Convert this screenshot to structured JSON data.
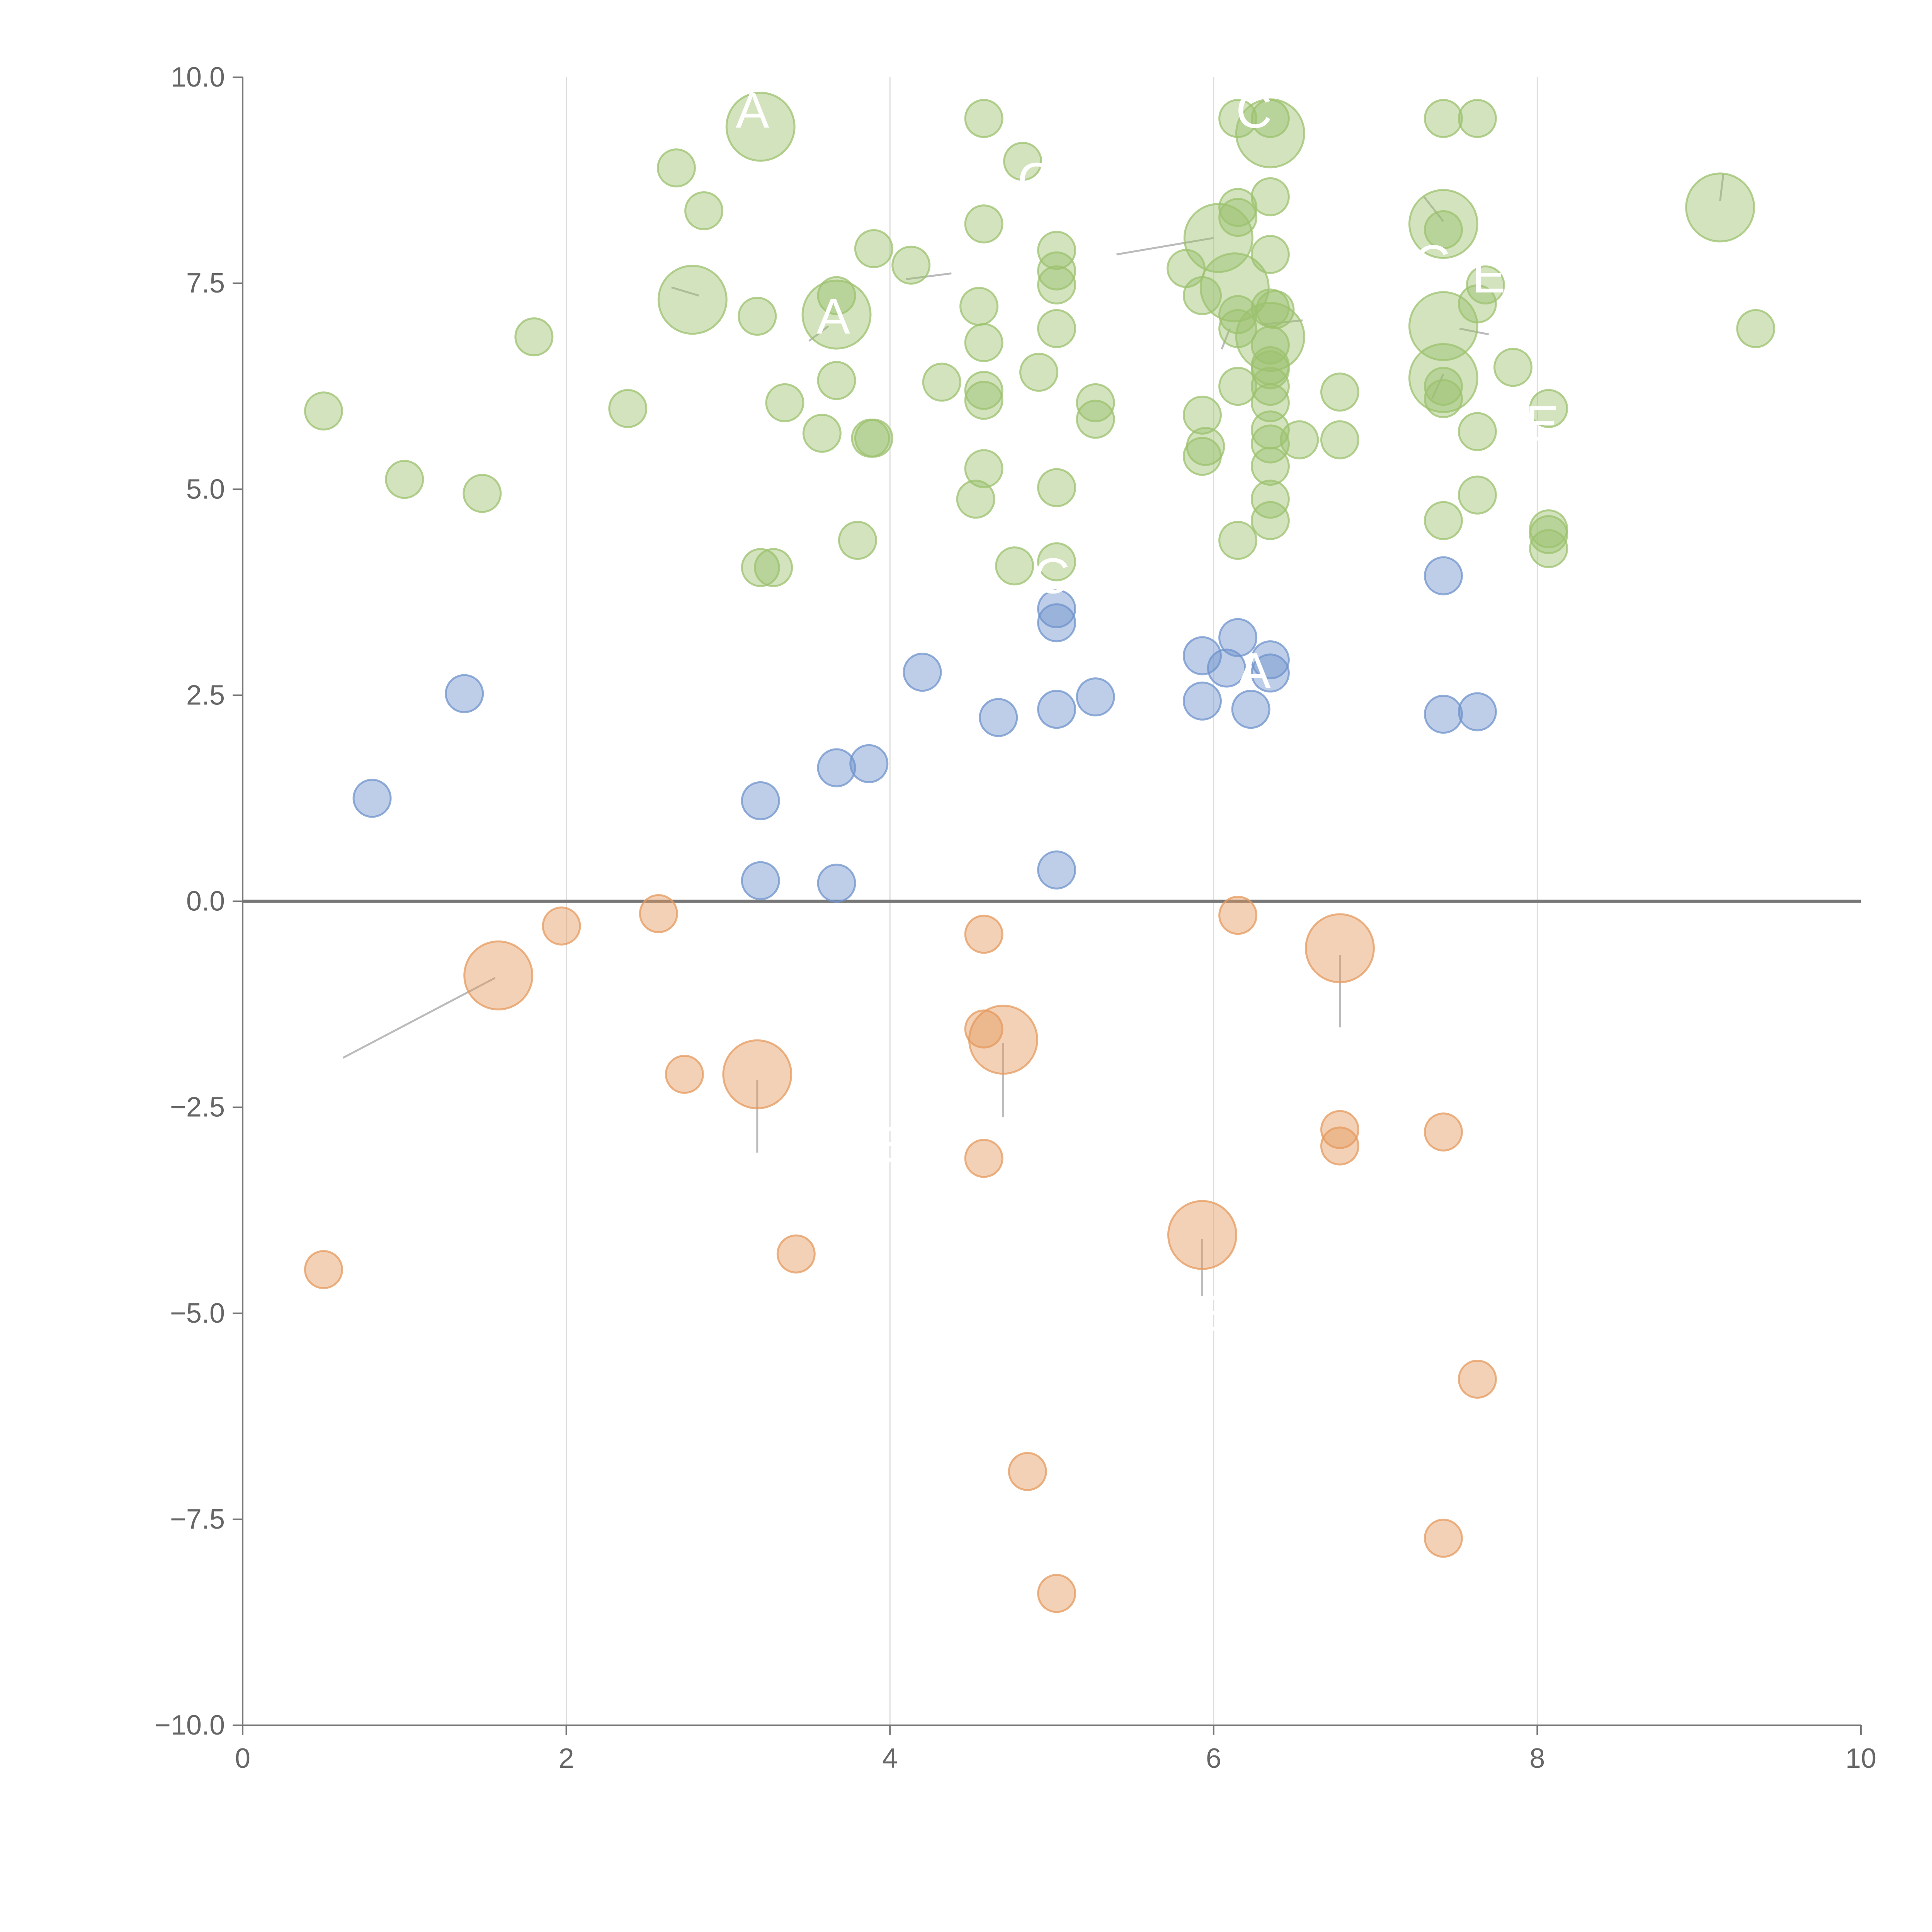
{
  "chart_data": {
    "type": "scatter",
    "title": "",
    "xlabel": "",
    "ylabel": "",
    "xlim": [
      0,
      10
    ],
    "ylim": [
      -10,
      10
    ],
    "x_ticks": [
      0,
      2,
      4,
      6,
      8,
      10
    ],
    "x_tick_labels": [
      "0",
      "2",
      "4",
      "6",
      "8",
      "10"
    ],
    "y_ticks": [
      10,
      7.5,
      5,
      2.5,
      0,
      -2.5,
      -5,
      -7.5,
      -10
    ],
    "y_tick_labels": [
      "10.0",
      "7.5",
      "5.0",
      "2.5",
      "0.0",
      "−2.5",
      "−5.0",
      "−7.5",
      "−10.0"
    ],
    "grid": "vertical lines at x ticks",
    "zero_line": 0,
    "legend": "none",
    "colors": {
      "green": "#9cc26e",
      "blue": "#6f93cc",
      "orange": "#e59a5e"
    },
    "series": [
      {
        "name": "green",
        "points": [
          [
            0.5,
            5.95,
            1
          ],
          [
            1.0,
            5.12,
            1
          ],
          [
            1.48,
            4.95,
            1
          ],
          [
            1.8,
            6.85,
            1
          ],
          [
            2.38,
            5.98,
            1
          ],
          [
            2.68,
            8.9,
            1
          ],
          [
            2.85,
            8.38,
            1
          ],
          [
            2.78,
            7.3,
            3
          ],
          [
            3.2,
            9.4,
            3
          ],
          [
            3.18,
            7.1,
            1
          ],
          [
            3.35,
            6.05,
            1
          ],
          [
            3.58,
            5.68,
            1
          ],
          [
            3.67,
            6.32,
            1
          ],
          [
            3.67,
            7.35,
            1
          ],
          [
            3.67,
            7.12,
            3
          ],
          [
            3.9,
            7.92,
            1
          ],
          [
            3.88,
            5.62,
            1
          ],
          [
            3.9,
            5.62,
            1
          ],
          [
            3.8,
            4.38,
            1
          ],
          [
            3.2,
            4.05,
            1
          ],
          [
            3.28,
            4.05,
            1
          ],
          [
            4.13,
            7.72,
            1
          ],
          [
            4.32,
            6.3,
            1
          ],
          [
            4.58,
            9.5,
            1
          ],
          [
            4.58,
            8.22,
            1
          ],
          [
            4.55,
            7.22,
            1
          ],
          [
            4.58,
            6.78,
            1
          ],
          [
            4.58,
            6.2,
            1
          ],
          [
            4.58,
            6.08,
            1
          ],
          [
            4.58,
            5.25,
            1
          ],
          [
            4.53,
            4.88,
            1
          ],
          [
            4.82,
            8.98,
            1
          ],
          [
            4.92,
            6.42,
            1
          ],
          [
            4.77,
            4.07,
            1
          ],
          [
            5.03,
            7.9,
            1
          ],
          [
            5.03,
            7.65,
            1
          ],
          [
            5.03,
            7.48,
            1
          ],
          [
            5.03,
            6.95,
            1
          ],
          [
            5.03,
            5.02,
            1
          ],
          [
            5.03,
            4.12,
            1
          ],
          [
            5.27,
            6.05,
            1
          ],
          [
            5.27,
            5.85,
            1
          ],
          [
            5.83,
            7.68,
            1
          ],
          [
            5.93,
            7.35,
            1
          ],
          [
            5.93,
            5.9,
            1
          ],
          [
            5.95,
            5.52,
            1
          ],
          [
            5.93,
            5.4,
            1
          ],
          [
            6.03,
            8.05,
            3
          ],
          [
            6.15,
            9.5,
            1
          ],
          [
            6.15,
            8.42,
            1
          ],
          [
            6.15,
            8.3,
            1
          ],
          [
            6.15,
            7.12,
            1
          ],
          [
            6.15,
            6.95,
            1
          ],
          [
            6.15,
            6.25,
            1
          ],
          [
            6.15,
            4.38,
            1
          ],
          [
            6.13,
            7.45,
            3
          ],
          [
            6.35,
            9.5,
            1
          ],
          [
            6.35,
            9.32,
            3
          ],
          [
            6.35,
            8.55,
            1
          ],
          [
            6.35,
            7.85,
            1
          ],
          [
            6.35,
            7.2,
            1
          ],
          [
            6.38,
            7.18,
            1
          ],
          [
            6.35,
            6.85,
            3
          ],
          [
            6.35,
            6.75,
            1
          ],
          [
            6.35,
            6.5,
            1
          ],
          [
            6.35,
            6.45,
            1
          ],
          [
            6.35,
            6.25,
            1
          ],
          [
            6.35,
            6.05,
            1
          ],
          [
            6.35,
            5.72,
            1
          ],
          [
            6.35,
            5.55,
            1
          ],
          [
            6.35,
            5.28,
            1
          ],
          [
            6.35,
            4.88,
            1
          ],
          [
            6.35,
            4.62,
            1
          ],
          [
            6.53,
            5.6,
            1
          ],
          [
            6.78,
            6.18,
            1
          ],
          [
            6.78,
            5.6,
            1
          ],
          [
            7.42,
            9.5,
            1
          ],
          [
            7.42,
            8.22,
            3
          ],
          [
            7.42,
            8.15,
            1
          ],
          [
            7.42,
            6.98,
            3
          ],
          [
            7.42,
            6.35,
            3
          ],
          [
            7.42,
            6.25,
            1
          ],
          [
            7.42,
            6.1,
            1
          ],
          [
            7.42,
            4.62,
            1
          ],
          [
            7.63,
            9.5,
            1
          ],
          [
            7.63,
            7.25,
            1
          ],
          [
            7.68,
            7.48,
            1
          ],
          [
            7.63,
            5.7,
            1
          ],
          [
            7.63,
            4.93,
            1
          ],
          [
            7.85,
            6.48,
            1
          ],
          [
            8.07,
            5.98,
            1
          ],
          [
            8.07,
            4.52,
            1
          ],
          [
            8.07,
            4.45,
            1
          ],
          [
            8.07,
            4.28,
            1
          ],
          [
            9.13,
            8.42,
            3
          ],
          [
            9.35,
            6.95,
            1
          ]
        ]
      },
      {
        "name": "blue",
        "points": [
          [
            0.8,
            1.25,
            1
          ],
          [
            1.37,
            2.52,
            1
          ],
          [
            3.2,
            1.22,
            1
          ],
          [
            3.2,
            0.25,
            1
          ],
          [
            3.67,
            1.62,
            1
          ],
          [
            3.67,
            0.22,
            1
          ],
          [
            3.87,
            1.67,
            1
          ],
          [
            4.2,
            2.78,
            1
          ],
          [
            4.67,
            2.23,
            1
          ],
          [
            5.03,
            3.55,
            1
          ],
          [
            5.03,
            3.38,
            1
          ],
          [
            5.03,
            2.33,
            1
          ],
          [
            5.03,
            0.38,
            1
          ],
          [
            5.27,
            2.48,
            1
          ],
          [
            5.93,
            2.98,
            1
          ],
          [
            5.93,
            2.43,
            1
          ],
          [
            6.08,
            2.83,
            1
          ],
          [
            6.15,
            3.2,
            1
          ],
          [
            6.23,
            2.33,
            1
          ],
          [
            6.35,
            2.93,
            1
          ],
          [
            6.35,
            2.77,
            1
          ],
          [
            7.42,
            3.95,
            1
          ],
          [
            7.42,
            2.27,
            1
          ],
          [
            7.63,
            2.3,
            1
          ]
        ]
      },
      {
        "name": "orange",
        "points": [
          [
            0.5,
            -4.47,
            1
          ],
          [
            1.58,
            -0.9,
            3
          ],
          [
            1.97,
            -0.3,
            1
          ],
          [
            2.57,
            -0.15,
            1
          ],
          [
            2.73,
            -2.1,
            1
          ],
          [
            3.18,
            -2.1,
            3
          ],
          [
            3.42,
            -4.28,
            1
          ],
          [
            4.58,
            -0.4,
            1
          ],
          [
            4.58,
            -1.55,
            1
          ],
          [
            4.7,
            -1.68,
            3
          ],
          [
            4.58,
            -3.12,
            1
          ],
          [
            4.85,
            -6.92,
            1
          ],
          [
            5.03,
            -8.4,
            1
          ],
          [
            5.93,
            -4.05,
            3
          ],
          [
            6.15,
            -0.17,
            1
          ],
          [
            6.78,
            -0.57,
            3
          ],
          [
            6.78,
            -2.77,
            1
          ],
          [
            6.78,
            -2.97,
            1
          ],
          [
            7.42,
            -2.8,
            1
          ],
          [
            7.63,
            -5.8,
            1
          ],
          [
            7.42,
            -7.73,
            1
          ]
        ]
      }
    ],
    "leader_lines": [
      [
        [
          0.62,
          -1.9
        ],
        [
          1.56,
          -0.93
        ]
      ],
      [
        [
          3.18,
          -2.17
        ],
        [
          3.18,
          -3.05
        ]
      ],
      [
        [
          4.7,
          -1.72
        ],
        [
          4.7,
          -2.62
        ]
      ],
      [
        [
          5.93,
          -4.1
        ],
        [
          5.93,
          -4.98
        ]
      ],
      [
        [
          6.78,
          -0.65
        ],
        [
          6.78,
          -1.53
        ]
      ],
      [
        [
          2.65,
          7.45
        ],
        [
          2.82,
          7.35
        ]
      ],
      [
        [
          3.5,
          6.8
        ],
        [
          3.62,
          6.98
        ]
      ],
      [
        [
          9.13,
          8.5
        ],
        [
          9.15,
          8.83
        ]
      ],
      [
        [
          7.42,
          8.25
        ],
        [
          7.3,
          8.55
        ]
      ],
      [
        [
          7.52,
          6.95
        ],
        [
          7.7,
          6.88
        ]
      ],
      [
        [
          7.42,
          6.4
        ],
        [
          7.35,
          6.1
        ]
      ],
      [
        [
          4.1,
          7.55
        ],
        [
          4.38,
          7.62
        ]
      ],
      [
        [
          5.4,
          7.85
        ],
        [
          6.0,
          8.05
        ]
      ],
      [
        [
          6.3,
          7.0
        ],
        [
          6.55,
          7.05
        ]
      ],
      [
        [
          6.1,
          6.95
        ],
        [
          6.05,
          6.7
        ]
      ]
    ],
    "annotations": [
      {
        "text": "A",
        "x": 3.15,
        "y": 9.6
      },
      {
        "text": "A",
        "x": 3.65,
        "y": 7.1
      },
      {
        "text": "C",
        "x": 4.9,
        "y": 8.75
      },
      {
        "text": "C",
        "x": 6.25,
        "y": 9.6
      },
      {
        "text": "C",
        "x": 7.35,
        "y": 7.75
      },
      {
        "text": "E",
        "x": 7.7,
        "y": 7.6
      },
      {
        "text": "E",
        "x": 8.03,
        "y": 5.8
      },
      {
        "text": "C",
        "x": 5.0,
        "y": 3.95
      },
      {
        "text": "A",
        "x": 6.25,
        "y": 2.8
      },
      {
        "text": "E",
        "x": 4.0,
        "y": -2.95
      },
      {
        "text": "E",
        "x": 6.0,
        "y": -5.0
      }
    ]
  }
}
